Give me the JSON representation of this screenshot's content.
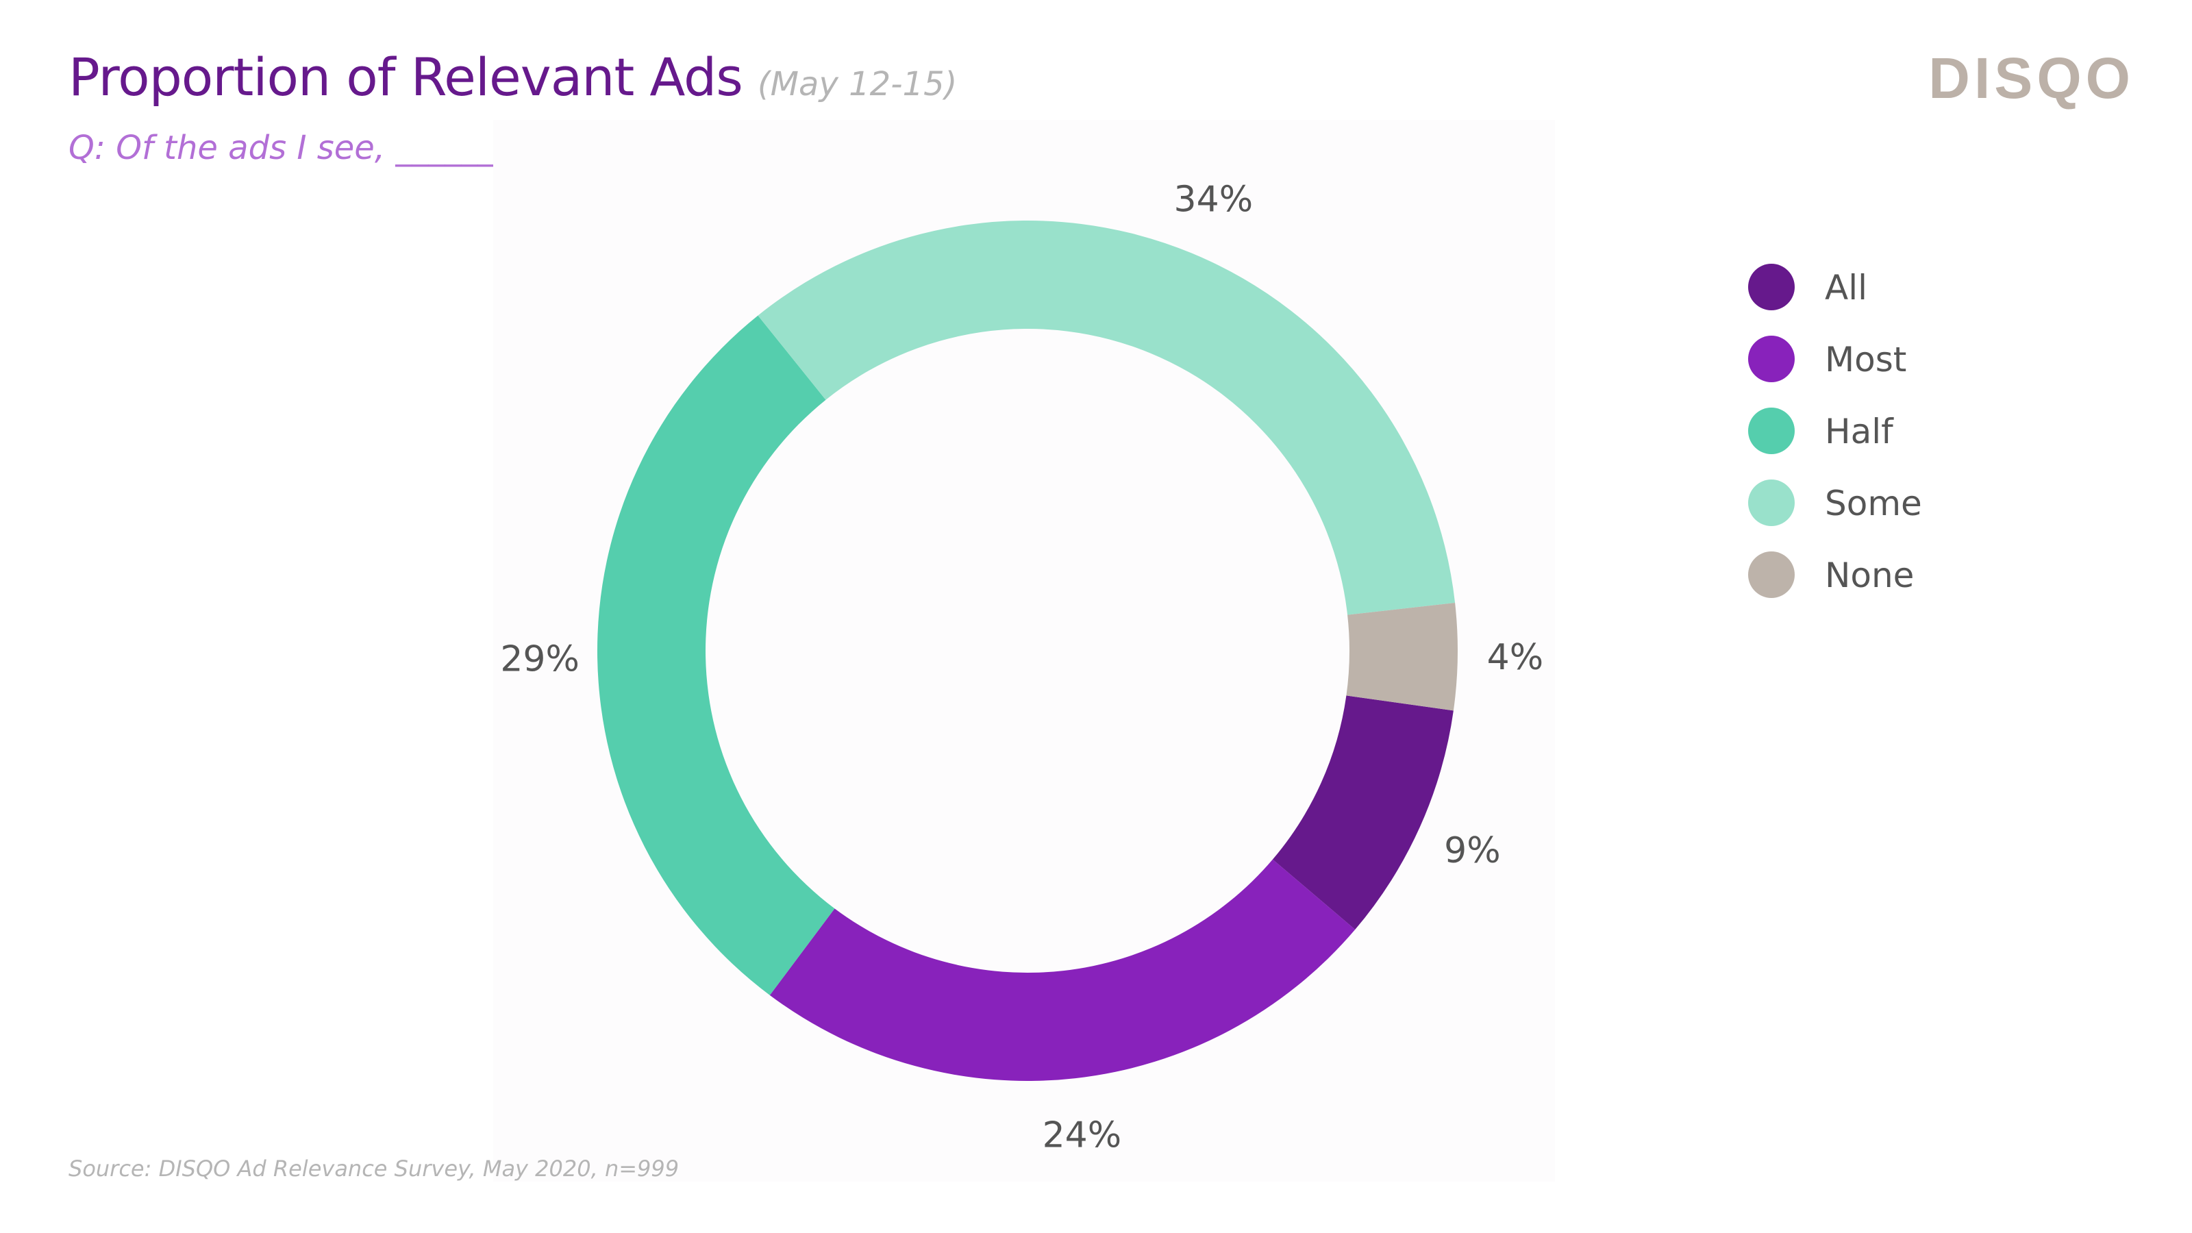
{
  "header": {
    "title": "Proportion of Relevant Ads",
    "date_range": "(May 12-15)",
    "subtitle": "Q: Of the ads I see, ______ are relevant.",
    "logo": "DISQO"
  },
  "colors": {
    "title": "#66198c",
    "subtitle": "#b26fd6",
    "logo": "#bcb1a8",
    "muted": "#b5b5b5",
    "label": "#555555"
  },
  "chart_data": {
    "type": "pie",
    "variant": "donut",
    "title": "Proportion of Relevant Ads",
    "categories": [
      "All",
      "Most",
      "Half",
      "Some",
      "None"
    ],
    "values": [
      9,
      24,
      29,
      34,
      4
    ],
    "unit": "%",
    "labels": [
      "9%",
      "24%",
      "29%",
      "34%",
      "4%"
    ],
    "colors": [
      "#66198c",
      "#8822bb",
      "#55cead",
      "#99e1cb",
      "#bdb3aa"
    ],
    "legend_position": "right"
  },
  "legend": {
    "items": [
      {
        "label": "All",
        "color": "#66198c"
      },
      {
        "label": "Most",
        "color": "#8822bb"
      },
      {
        "label": "Half",
        "color": "#55cead"
      },
      {
        "label": "Some",
        "color": "#99e1cb"
      },
      {
        "label": "None",
        "color": "#bdb3aa"
      }
    ]
  },
  "footer": {
    "source": "Source: DISQO Ad Relevance Survey, May 2020, n=999"
  }
}
